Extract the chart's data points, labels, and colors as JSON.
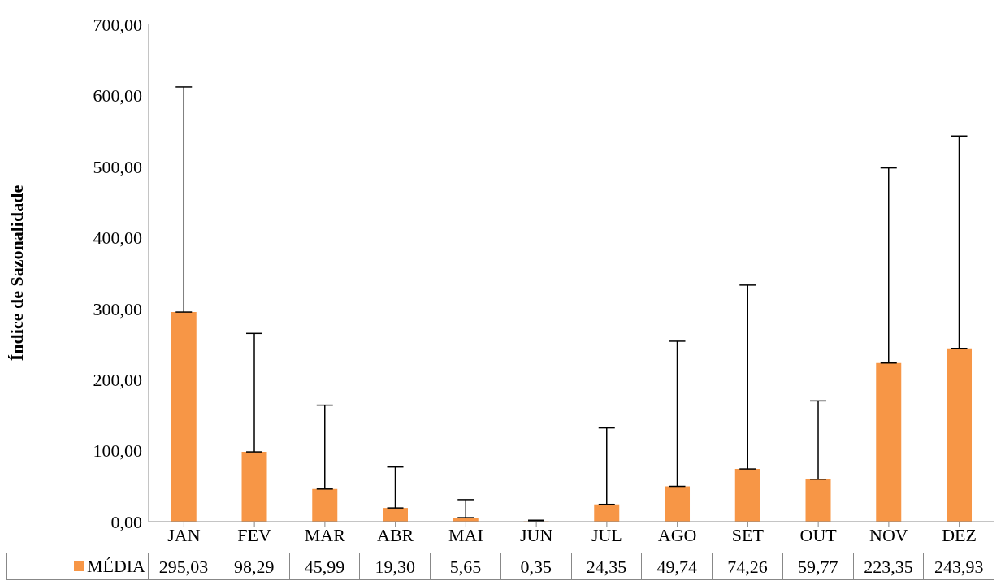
{
  "chart_data": {
    "type": "bar",
    "ylabel": "Índice de Sazonalidade",
    "categories": [
      "JAN",
      "FEV",
      "MAR",
      "ABR",
      "MAI",
      "JUN",
      "JUL",
      "AGO",
      "SET",
      "OUT",
      "NOV",
      "DEZ"
    ],
    "series": [
      {
        "name": "MÉDIA",
        "color": "#f79646",
        "values": [
          295.03,
          98.29,
          45.99,
          19.3,
          5.65,
          0.35,
          24.35,
          49.74,
          74.26,
          59.77,
          223.35,
          243.93
        ],
        "value_labels": [
          "295,03",
          "98,29",
          "45,99",
          "19,30",
          "5,65",
          "0,35",
          "24,35",
          "49,74",
          "74,26",
          "59,77",
          "223,35",
          "243,93"
        ],
        "errors": [
          [
            295.03,
            612
          ],
          [
            98.29,
            265
          ],
          [
            45.99,
            164
          ],
          [
            19.3,
            77
          ],
          [
            5.65,
            31
          ],
          [
            0.35,
            2
          ],
          [
            24.35,
            132
          ],
          [
            49.74,
            254
          ],
          [
            74.26,
            333
          ],
          [
            59.77,
            170
          ],
          [
            223.35,
            498
          ],
          [
            243.93,
            543
          ]
        ]
      }
    ],
    "ylim": [
      0,
      700
    ],
    "yticks": [
      {
        "value": 0,
        "label": "0,00"
      },
      {
        "value": 100,
        "label": "100,00"
      },
      {
        "value": 200,
        "label": "200,00"
      },
      {
        "value": 300,
        "label": "300,00"
      },
      {
        "value": 400,
        "label": "400,00"
      },
      {
        "value": 500,
        "label": "500,00"
      },
      {
        "value": 600,
        "label": "600,00"
      },
      {
        "value": 700,
        "label": "700,00"
      }
    ],
    "grid": false,
    "legend": "bottom"
  }
}
